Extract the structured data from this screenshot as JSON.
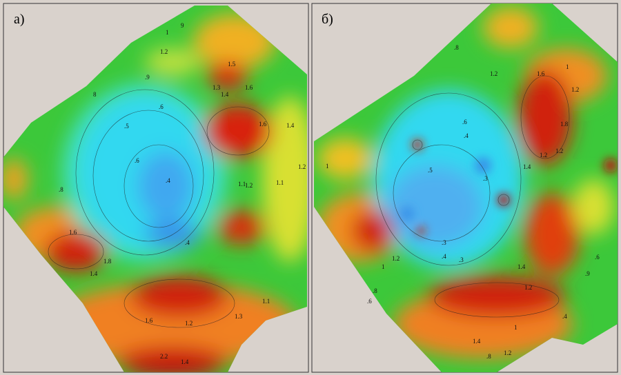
{
  "panels": [
    {
      "label": "а)",
      "contour_labels": [
        "1.2",
        "1",
        "9",
        "8",
        ".6",
        ".5",
        ".4",
        ".6",
        ".4",
        "1.5",
        "1.3",
        "1.6",
        "1.4",
        "1.1",
        "1.2",
        "1.4",
        "1.6",
        "1.1",
        "1.2",
        "1.8",
        "1.4",
        "1.6",
        "1.2",
        "1.3",
        "2.2",
        "1.4",
        "1.6",
        ".9",
        ".8",
        "1.1"
      ]
    },
    {
      "label": "б)",
      "contour_labels": [
        "1.6",
        "1",
        "1.2",
        ".8",
        ".6",
        ".4",
        ".3",
        ".5",
        ".4",
        ".3",
        "1.4",
        "1.2",
        "1.2",
        "1",
        ".8",
        ".6",
        "1.4",
        "1.2",
        "1.8",
        "1.2",
        ".4",
        ".3",
        "1",
        "1.4",
        ".8",
        "1.2",
        ".9",
        ".6",
        "1",
        "1.2"
      ]
    }
  ]
}
